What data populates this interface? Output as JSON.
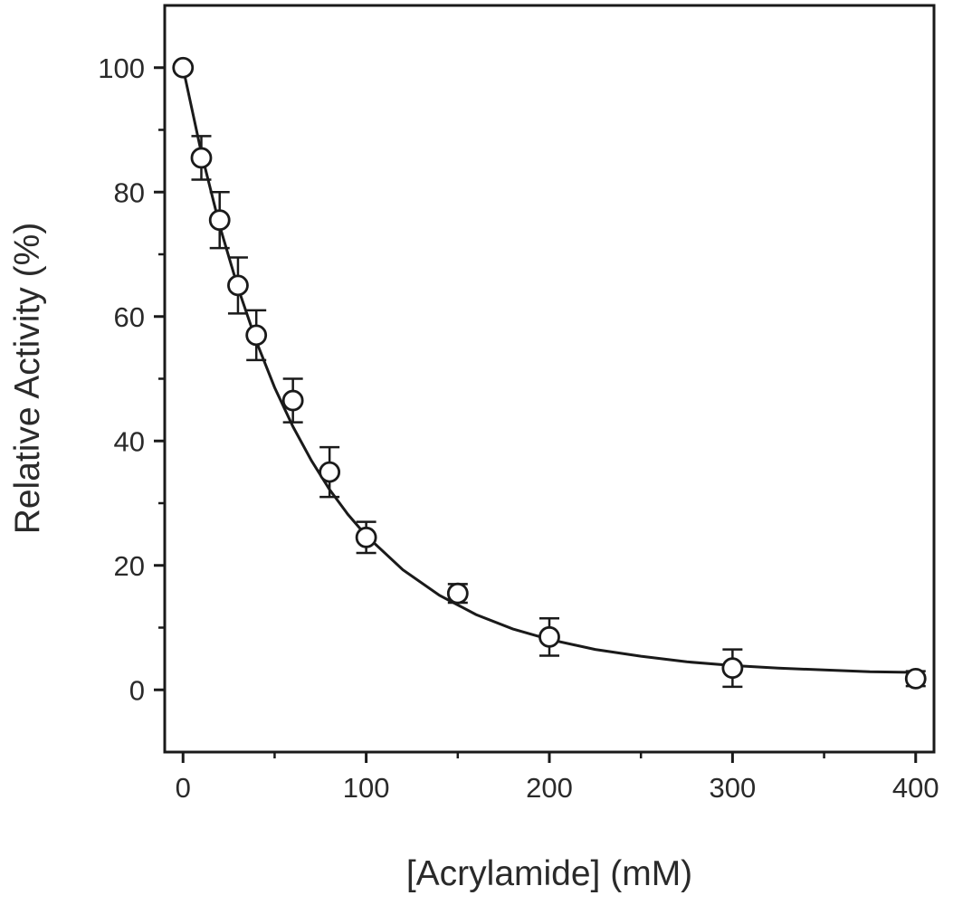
{
  "chart_data": {
    "type": "scatter",
    "title": "",
    "xlabel": "[Acrylamide] (mM)",
    "ylabel": "Relative Activity (%)",
    "xlim": [
      -10,
      410
    ],
    "ylim": [
      -10,
      110
    ],
    "x_ticks": [
      0,
      100,
      200,
      300,
      400
    ],
    "x_tick_labels": [
      "0",
      "100",
      "200",
      "300",
      "400"
    ],
    "y_ticks": [
      0,
      20,
      40,
      60,
      80,
      100
    ],
    "y_tick_labels": [
      "0",
      "20",
      "40",
      "60",
      "80",
      "100"
    ],
    "x_minor_ticks": [
      50,
      150,
      250,
      350
    ],
    "y_minor_ticks": [
      10,
      30,
      50,
      70,
      90
    ],
    "grid": false,
    "legend": "none",
    "series": [
      {
        "marker": "open-circle",
        "x": [
          0,
          10,
          20,
          30,
          40,
          60,
          80,
          100,
          150,
          200,
          300,
          400
        ],
        "y": [
          100,
          85.5,
          75.5,
          65,
          57,
          46.5,
          35,
          24.5,
          15.5,
          8.5,
          3.5,
          1.8
        ],
        "y_error": [
          0.5,
          3.5,
          4.5,
          4.5,
          4,
          3.5,
          4,
          2.5,
          1.5,
          3,
          3,
          1.2
        ]
      }
    ],
    "fit_curve": {
      "form": "exponential-decay",
      "x": [
        0,
        10,
        20,
        30,
        40,
        50,
        60,
        70,
        80,
        90,
        100,
        120,
        140,
        160,
        180,
        200,
        225,
        250,
        275,
        300,
        325,
        350,
        375,
        400
      ],
      "y": [
        100,
        86.3,
        74.6,
        64.6,
        56.0,
        48.6,
        42.3,
        36.9,
        32.2,
        28.2,
        24.8,
        19.3,
        15.2,
        12.1,
        9.8,
        8.1,
        6.5,
        5.4,
        4.5,
        3.9,
        3.5,
        3.2,
        2.9,
        2.8
      ]
    },
    "colors": {
      "ink": "#1a1a1a",
      "text": "#2a2a2a",
      "background": "#ffffff"
    }
  }
}
